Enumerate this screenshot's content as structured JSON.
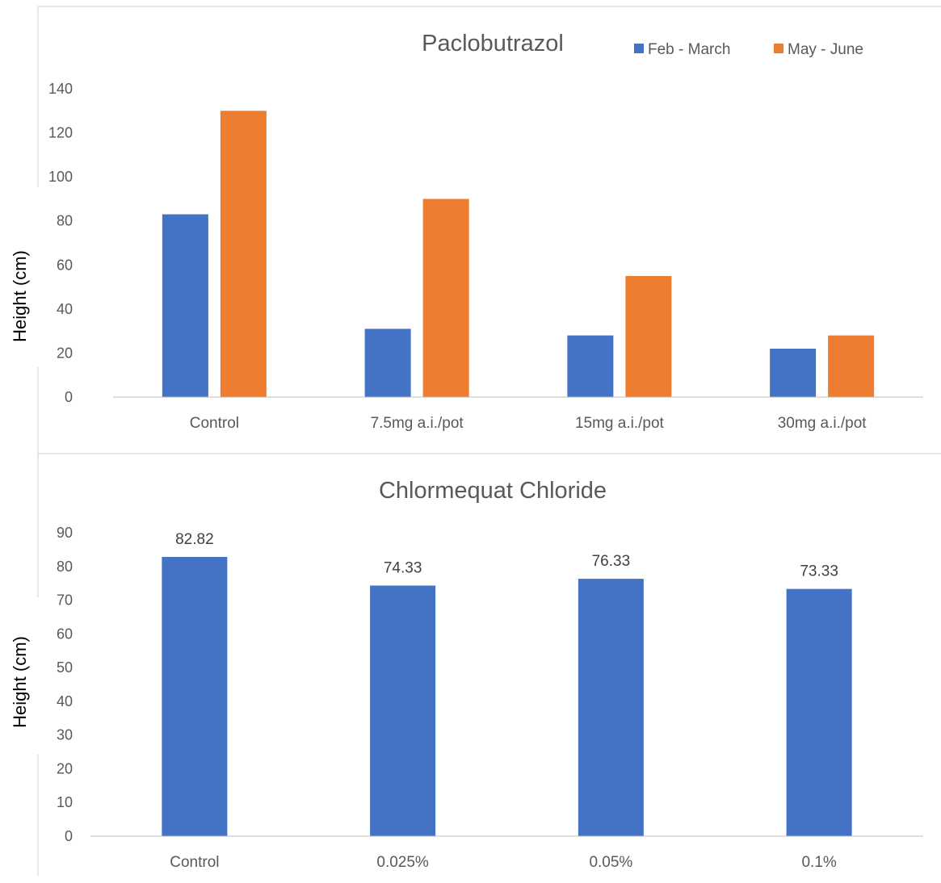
{
  "chart_data": [
    {
      "type": "bar",
      "title": "Paclobutrazol",
      "ylabel": "Height (cm)",
      "xlabel": "",
      "categories": [
        "Control",
        "7.5mg a.i./pot",
        "15mg a.i./pot",
        "30mg a.i./pot"
      ],
      "series": [
        {
          "name": "Feb - March",
          "color": "#4472c4",
          "values": [
            83,
            31,
            28,
            22
          ]
        },
        {
          "name": "May - June",
          "color": "#ed7d31",
          "values": [
            130,
            90,
            55,
            28
          ]
        }
      ],
      "ylim": [
        0,
        140
      ],
      "yticks": [
        "0",
        "20",
        "40",
        "60",
        "80",
        "100",
        "120",
        "140"
      ],
      "grid": false,
      "legend_position": "top-right"
    },
    {
      "type": "bar",
      "title": "Chlormequat Chloride",
      "ylabel": "Height (cm)",
      "xlabel": "",
      "categories": [
        "Control",
        "0.025%",
        "0.05%",
        "0.1%"
      ],
      "series": [
        {
          "color": "#4472c4",
          "values": [
            82.82,
            74.33,
            76.33,
            73.33
          ]
        }
      ],
      "data_labels": [
        "82.82",
        "74.33",
        "76.33",
        "73.33"
      ],
      "ylim": [
        0,
        90
      ],
      "yticks": [
        "0",
        "10",
        "20",
        "30",
        "40",
        "50",
        "60",
        "70",
        "80",
        "90"
      ],
      "grid": false
    }
  ]
}
